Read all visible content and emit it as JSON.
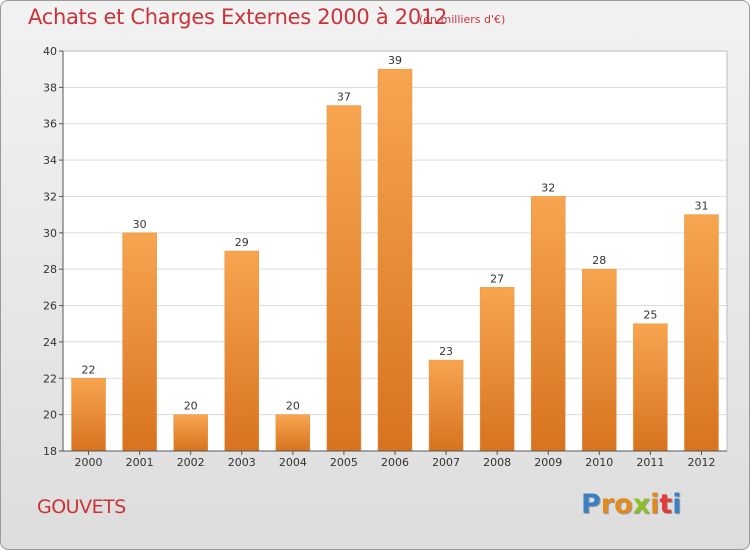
{
  "header": {
    "title": "Achats et Charges Externes 2000 à 2012",
    "subtitle": "(en milliers d'€)"
  },
  "footer": {
    "commune": "GOUVETS",
    "logo_letters": [
      "P",
      "r",
      "o",
      "x",
      "i",
      "t",
      "i"
    ],
    "logo_colors": [
      "#3a7fc4",
      "#e28a1c",
      "#e28a1c",
      "#8cbf26",
      "#e28a1c",
      "#e23a3a",
      "#3a7fc4"
    ]
  },
  "colors": {
    "bar_light": "#f7a550",
    "bar_dark": "#d8731f",
    "text_red": "#c9343a"
  },
  "chart_data": {
    "type": "bar",
    "title": "Achats et Charges Externes 2000 à 2012",
    "subtitle": "(en milliers d'€)",
    "categories": [
      "2000",
      "2001",
      "2002",
      "2003",
      "2004",
      "2005",
      "2006",
      "2007",
      "2008",
      "2009",
      "2010",
      "2011",
      "2012"
    ],
    "values": [
      22,
      30,
      20,
      29,
      20,
      37,
      39,
      23,
      27,
      32,
      28,
      25,
      31
    ],
    "ylim": [
      18,
      40
    ],
    "yticks": [
      18,
      20,
      22,
      24,
      26,
      28,
      30,
      32,
      34,
      36,
      38,
      40
    ],
    "grid": true,
    "legend": "none"
  }
}
